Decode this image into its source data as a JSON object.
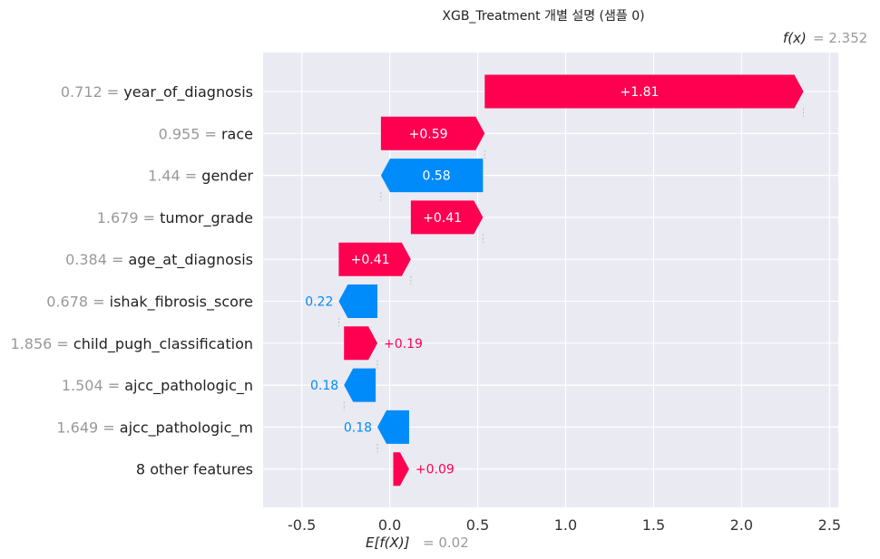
{
  "chart_data": {
    "type": "waterfall",
    "title": "XGB_Treatment 개별 설명 (샘플 0)",
    "fx_label": "f(x)",
    "fx_value": "= 2.352",
    "fx": 2.352,
    "base_label": "E[f(X)]",
    "base_value": "= 0.02",
    "base": 0.02,
    "xlim": [
      -0.72,
      2.55
    ],
    "ticks": [
      -0.5,
      0.0,
      0.5,
      1.0,
      1.5,
      2.0,
      2.5
    ],
    "tick_labels": [
      "-0.5",
      "0.0",
      "0.5",
      "1.0",
      "1.5",
      "2.0",
      "2.5"
    ],
    "grid": true,
    "colors": {
      "positive": "#ff0051",
      "negative": "#008bfb",
      "background": "#eaeaf2",
      "grid": "#ffffff"
    },
    "features": [
      {
        "value": "0.712",
        "name": "year_of_diagnosis",
        "label": "+1.81",
        "start": 0.54,
        "end": 2.352
      },
      {
        "value": "0.955",
        "name": "race",
        "label": "+0.59",
        "start": -0.05,
        "end": 0.54
      },
      {
        "value": "1.44",
        "name": "gender",
        "label": "0.58",
        "start": 0.53,
        "end": -0.05
      },
      {
        "value": "1.679",
        "name": "tumor_grade",
        "label": "+0.41",
        "start": 0.12,
        "end": 0.53
      },
      {
        "value": "0.384",
        "name": "age_at_diagnosis",
        "label": "+0.41",
        "start": -0.29,
        "end": 0.12
      },
      {
        "value": "0.678",
        "name": "ishak_fibrosis_score",
        "label": "0.22",
        "start": -0.07,
        "end": -0.29
      },
      {
        "value": "1.856",
        "name": "child_pugh_classification",
        "label": "+0.19",
        "start": -0.26,
        "end": -0.07
      },
      {
        "value": "1.504",
        "name": "ajcc_pathologic_n",
        "label": "0.18",
        "start": -0.08,
        "end": -0.26
      },
      {
        "value": "1.649",
        "name": "ajcc_pathologic_m",
        "label": "0.18",
        "start": 0.11,
        "end": -0.07
      },
      {
        "value": "",
        "name": "8 other features",
        "label": "+0.09",
        "start": 0.02,
        "end": 0.11
      }
    ]
  }
}
